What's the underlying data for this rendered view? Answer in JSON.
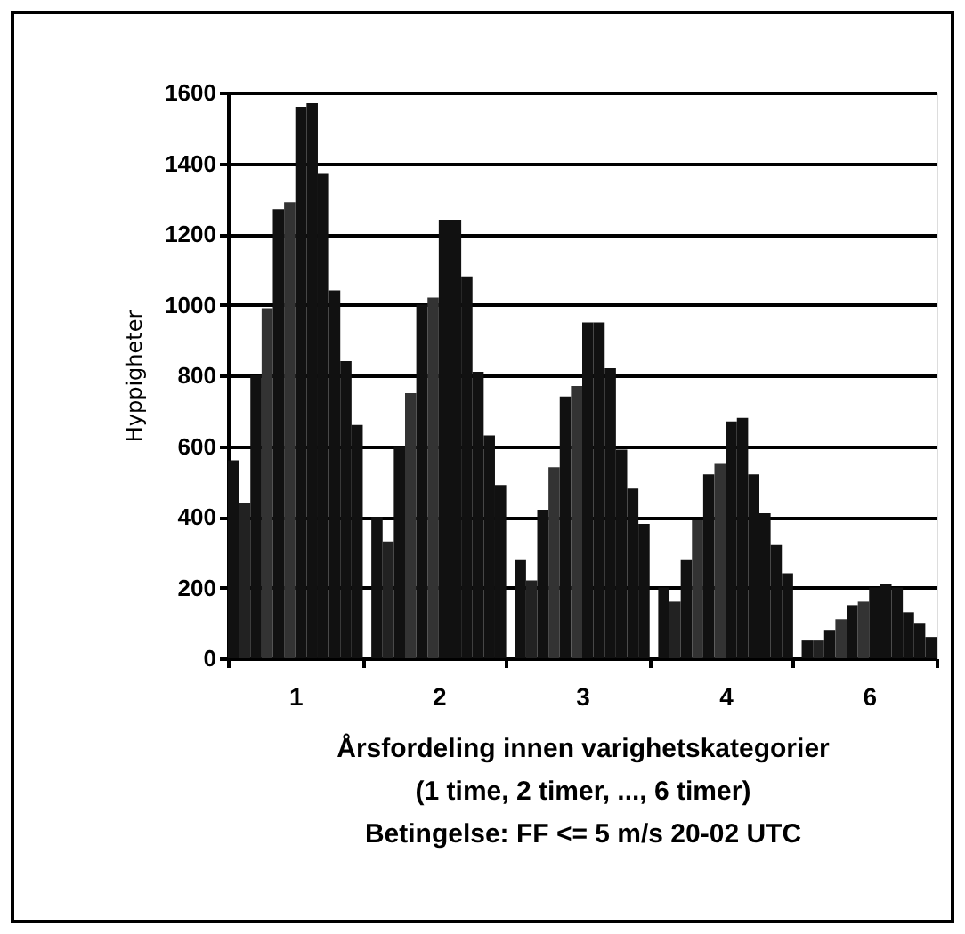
{
  "chart_data": {
    "type": "bar",
    "ylabel": "Hyppigheter",
    "xlabel": "Årsfordeling innen varighetskategorier\n(1 time, 2 timer, ..., 6 timer)\nBetingelse: FF <= 5 m/s 20-02 UTC",
    "categories": [
      "1",
      "2",
      "3",
      "4",
      "6"
    ],
    "series": [
      {
        "color": "#111111",
        "values": [
          560,
          400,
          280,
          200,
          50
        ]
      },
      {
        "color": "#222222",
        "values": [
          440,
          330,
          220,
          160,
          50
        ]
      },
      {
        "color": "#111111",
        "values": [
          800,
          600,
          420,
          280,
          80
        ]
      },
      {
        "color": "#333333",
        "values": [
          990,
          750,
          540,
          390,
          110
        ]
      },
      {
        "color": "#111111",
        "values": [
          1270,
          1000,
          740,
          520,
          150
        ]
      },
      {
        "color": "#333333",
        "values": [
          1290,
          1020,
          770,
          550,
          160
        ]
      },
      {
        "color": "#111111",
        "values": [
          1560,
          1240,
          950,
          670,
          200
        ]
      },
      {
        "color": "#111111",
        "values": [
          1570,
          1240,
          950,
          680,
          210
        ]
      },
      {
        "color": "#111111",
        "values": [
          1370,
          1080,
          820,
          520,
          200
        ]
      },
      {
        "color": "#111111",
        "values": [
          1040,
          810,
          590,
          410,
          130
        ]
      },
      {
        "color": "#111111",
        "values": [
          840,
          630,
          480,
          320,
          100
        ]
      },
      {
        "color": "#111111",
        "values": [
          660,
          490,
          380,
          240,
          60
        ]
      }
    ],
    "ylim": [
      0,
      1600
    ],
    "yticks": [
      0,
      200,
      400,
      600,
      800,
      1000,
      1200,
      1400,
      1600
    ],
    "grid": "y",
    "legend": false
  }
}
